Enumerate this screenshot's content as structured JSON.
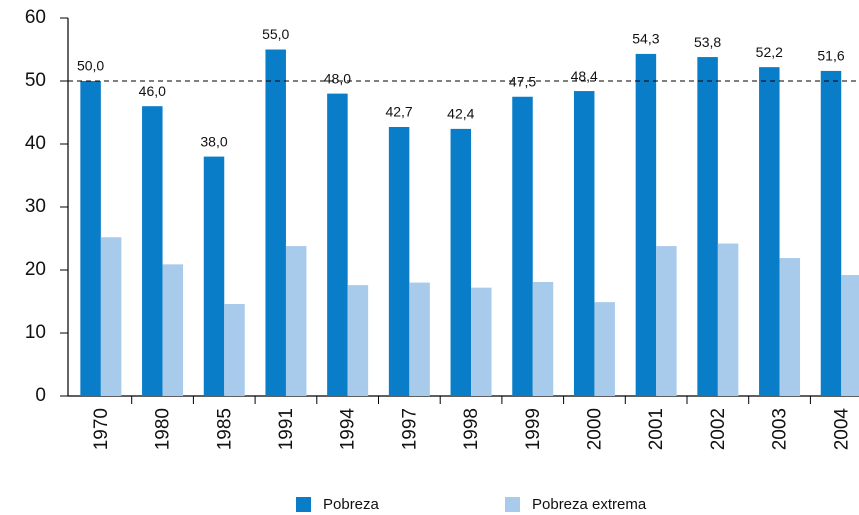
{
  "chart_data": {
    "type": "bar",
    "categories": [
      "1970",
      "1980",
      "1985",
      "1991",
      "1994",
      "1997",
      "1998",
      "1999",
      "2000",
      "2001",
      "2002",
      "2003",
      "2004"
    ],
    "series": [
      {
        "name": "Pobreza",
        "color": "#0a7dc8",
        "values": [
          50.0,
          46.0,
          38.0,
          55.0,
          48.0,
          42.7,
          42.4,
          47.5,
          48.4,
          54.3,
          53.8,
          52.2,
          51.6
        ],
        "value_labels": [
          "50,0",
          "46,0",
          "38,0",
          "55,0",
          "48,0",
          "42,7",
          "42,4",
          "47,5",
          "48,4",
          "54,3",
          "53,8",
          "52,2",
          "51,6"
        ]
      },
      {
        "name": "Pobreza extrema",
        "color": "#a9cbeb",
        "values": [
          25.2,
          20.9,
          14.6,
          23.8,
          17.6,
          18.0,
          17.2,
          18.1,
          14.9,
          23.8,
          24.2,
          21.9,
          19.2
        ]
      }
    ],
    "ylim": [
      0,
      60
    ],
    "yticks": [
      0,
      10,
      20,
      30,
      40,
      50,
      60
    ],
    "reference_line": 50
  }
}
